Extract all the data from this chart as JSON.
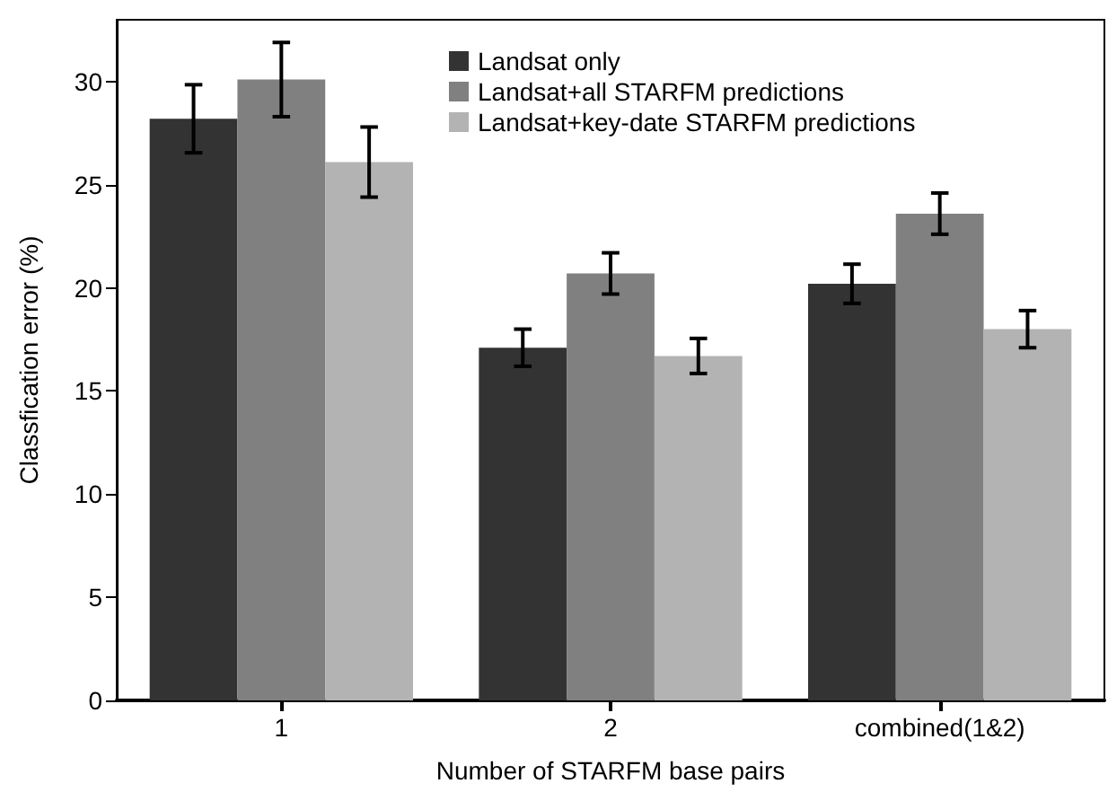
{
  "chart_data": {
    "type": "bar",
    "xlabel": "Number of STARFM base pairs",
    "ylabel": "Classfication error (%)",
    "categories": [
      "1",
      "2",
      "combined(1&2)"
    ],
    "series": [
      {
        "name": "Landsat only",
        "color": "#333333",
        "values": [
          28.2,
          17.1,
          20.2
        ],
        "errors": [
          1.65,
          0.9,
          0.95
        ]
      },
      {
        "name": "Landsat+all STARFM predictions",
        "color": "#808080",
        "values": [
          30.1,
          20.7,
          23.6
        ],
        "errors": [
          1.8,
          1.0,
          1.0
        ]
      },
      {
        "name": "Landsat+key-date STARFM predictions",
        "color": "#b3b3b3",
        "values": [
          26.1,
          16.7,
          18.0
        ],
        "errors": [
          1.7,
          0.85,
          0.9
        ]
      }
    ],
    "ylim": [
      0,
      33
    ],
    "yticks": [
      0,
      5,
      10,
      15,
      20,
      25,
      30
    ],
    "grid": false,
    "legend": "top"
  }
}
